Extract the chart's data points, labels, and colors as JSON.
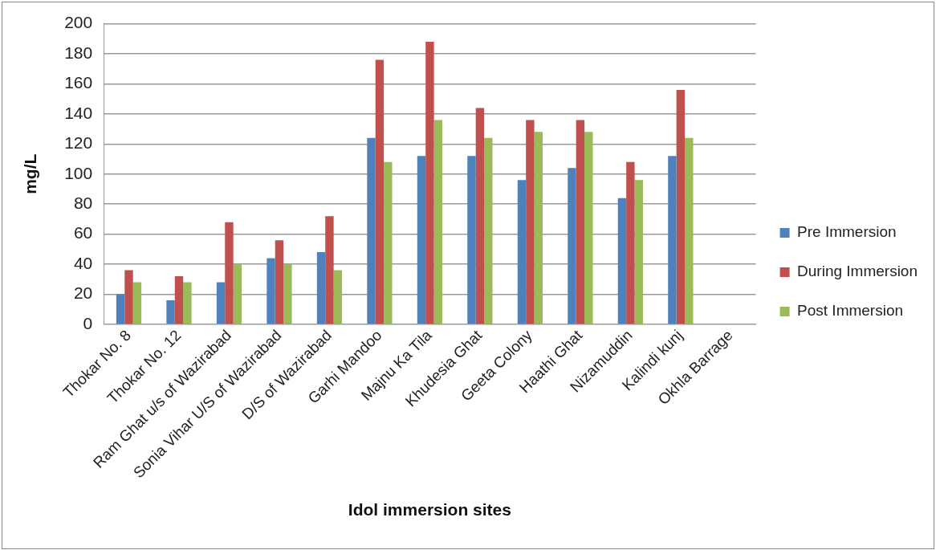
{
  "chart_data": {
    "type": "bar",
    "xlabel": "Idol immersion sites",
    "ylabel": "mg/L",
    "categories": [
      "Thokar No. 8",
      "Thokar No. 12",
      "Ram Ghat u/s of Wazirabad",
      "Sonia Vihar U/S of Wazirabad",
      "D/S of Wazirabad",
      "Garhi Mandoo",
      "Majnu Ka Tila",
      "Khudesia Ghat",
      "Geeta Colony",
      "Haathi Ghat",
      "Nizamuddin",
      "Kalindi kunj",
      "Okhla Barrage"
    ],
    "series": [
      {
        "name": "Pre Immersion",
        "color": "#4f81bd",
        "values": [
          20,
          16,
          28,
          44,
          48,
          124,
          112,
          112,
          96,
          104,
          84,
          112,
          null
        ]
      },
      {
        "name": "During Immersion",
        "color": "#c0504d",
        "values": [
          36,
          32,
          68,
          56,
          72,
          176,
          188,
          144,
          136,
          136,
          108,
          156,
          null
        ]
      },
      {
        "name": "Post Immersion",
        "color": "#9bbb59",
        "values": [
          28,
          28,
          40,
          40,
          36,
          108,
          136,
          124,
          128,
          128,
          96,
          124,
          null
        ]
      }
    ],
    "ylim": [
      0,
      200
    ],
    "yticks": [
      0,
      20,
      40,
      60,
      80,
      100,
      120,
      140,
      160,
      180,
      200
    ],
    "grid": "y",
    "legend": "right"
  }
}
